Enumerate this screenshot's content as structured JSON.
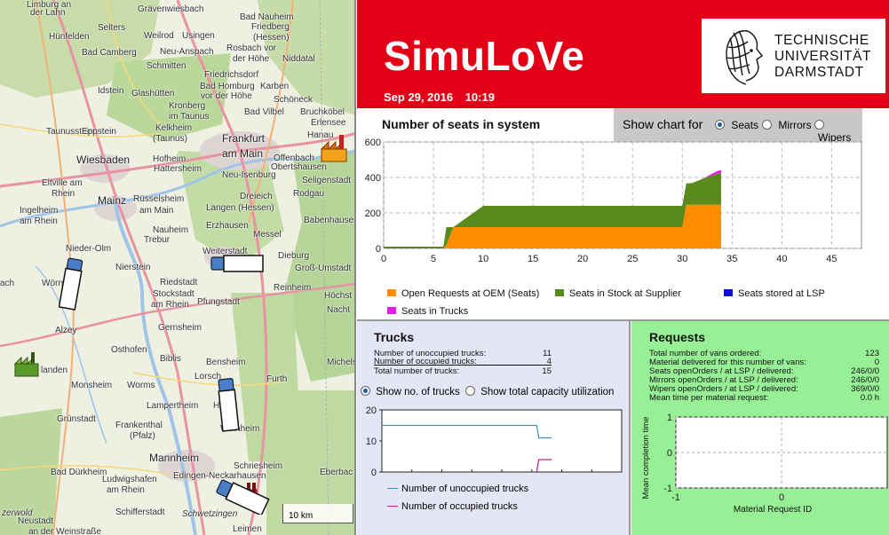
{
  "app": {
    "title": "SimuLoVe",
    "date": "Sep 29, 2016",
    "time": "10:19",
    "logo_lines": [
      "TECHNISCHE",
      "UNIVERSITÄT",
      "DARMSTADT"
    ]
  },
  "map": {
    "scale_label": "10 km",
    "towns": [
      {
        "name": "Limburg an",
        "cls": "",
        "id": "limburg"
      },
      {
        "name": "der Lahn",
        "cls": "",
        "id": "lahn"
      },
      {
        "name": "Grävenwiesbach",
        "cls": "",
        "id": "graevenwiesbach"
      },
      {
        "name": "Bad Nauheim",
        "cls": "",
        "id": "badnauheim"
      },
      {
        "name": "Friedberg",
        "cls": "",
        "id": "friedberg"
      },
      {
        "name": "(Hessen)",
        "cls": "",
        "id": "hessen1"
      },
      {
        "name": "Hünfelden",
        "cls": "",
        "id": "huenfelden"
      },
      {
        "name": "Selters",
        "cls": "",
        "id": "selters"
      },
      {
        "name": "Weilrod",
        "cls": "",
        "id": "weilrod"
      },
      {
        "name": "Usingen",
        "cls": "",
        "id": "usingen"
      },
      {
        "name": "Rosbach vor",
        "cls": "",
        "id": "rosbach"
      },
      {
        "name": "der Höhe",
        "cls": "",
        "id": "derhoehe"
      },
      {
        "name": "Niddatal",
        "cls": "",
        "id": "niddatal"
      },
      {
        "name": "Bad Camberg",
        "cls": "",
        "id": "badcamberg"
      },
      {
        "name": "Neu-Anspach",
        "cls": "",
        "id": "neuanspach"
      },
      {
        "name": "Schmitten",
        "cls": "",
        "id": "schmitten"
      },
      {
        "name": "Friedrichsdorf",
        "cls": "",
        "id": "friedrichsdorf"
      },
      {
        "name": "Bad Homburg",
        "cls": "",
        "id": "badhomburg"
      },
      {
        "name": "vor der Höhe",
        "cls": "",
        "id": "vorderhoehe"
      },
      {
        "name": "Karben",
        "cls": "",
        "id": "karben"
      },
      {
        "name": "Idstein",
        "cls": "",
        "id": "idstein"
      },
      {
        "name": "Glashütten",
        "cls": "",
        "id": "glashuetten"
      },
      {
        "name": "Schöneck",
        "cls": "",
        "id": "schoeneck"
      },
      {
        "name": "Kronberg",
        "cls": "",
        "id": "kronberg"
      },
      {
        "name": "im Taunus",
        "cls": "",
        "id": "imtaunus"
      },
      {
        "name": "Bad Vilbel",
        "cls": "",
        "id": "badvilbel"
      },
      {
        "name": "Bruchköbel",
        "cls": "",
        "id": "bruchkoebel"
      },
      {
        "name": "Erlensee",
        "cls": "",
        "id": "erlensee"
      },
      {
        "name": "Taunusstein",
        "cls": "",
        "id": "taunusstein"
      },
      {
        "name": "Eppstein",
        "cls": "",
        "id": "eppstein"
      },
      {
        "name": "Kelkheim",
        "cls": "",
        "id": "kelkheim"
      },
      {
        "name": "(Taunus)",
        "cls": "",
        "id": "taunus2"
      },
      {
        "name": "Frankfurt",
        "cls": "city",
        "id": "frankfurt"
      },
      {
        "name": "am Main",
        "cls": "city",
        "id": "ammain"
      },
      {
        "name": "Hanau",
        "cls": "",
        "id": "hanau"
      },
      {
        "name": "Wiesbaden",
        "cls": "city",
        "id": "wiesbaden"
      },
      {
        "name": "Hofheim",
        "cls": "",
        "id": "hofheim"
      },
      {
        "name": "Hattersheim",
        "cls": "",
        "id": "hattersheim"
      },
      {
        "name": "Offenbach",
        "cls": "",
        "id": "offenbach"
      },
      {
        "name": "Obertshausen",
        "cls": "",
        "id": "obertshausen"
      },
      {
        "name": "Seligenstadt",
        "cls": "",
        "id": "seligenstadt"
      },
      {
        "name": "Neu-Isenburg",
        "cls": "",
        "id": "neuisenburg"
      },
      {
        "name": "Eltville am",
        "cls": "",
        "id": "eltville"
      },
      {
        "name": "Rhein",
        "cls": "",
        "id": "rhein1"
      },
      {
        "name": "Mainz",
        "cls": "city",
        "id": "mainz"
      },
      {
        "name": "Rüsselsheim",
        "cls": "",
        "id": "ruesselsheim"
      },
      {
        "name": "am Main",
        "cls": "",
        "id": "ammain2"
      },
      {
        "name": "Dreieich",
        "cls": "",
        "id": "dreieich"
      },
      {
        "name": "Langen (Hessen)",
        "cls": "",
        "id": "langen"
      },
      {
        "name": "Rodgau",
        "cls": "",
        "id": "rodgau"
      },
      {
        "name": "Ingelheim",
        "cls": "",
        "id": "ingelheim"
      },
      {
        "name": "am Rhein",
        "cls": "",
        "id": "amrhein"
      },
      {
        "name": "Babenhausen",
        "cls": "",
        "id": "babenhausen"
      },
      {
        "name": "Nauheim",
        "cls": "",
        "id": "nauheim"
      },
      {
        "name": "Erzhausen",
        "cls": "",
        "id": "erzhausen"
      },
      {
        "name": "Trebur",
        "cls": "",
        "id": "trebur"
      },
      {
        "name": "Messel",
        "cls": "",
        "id": "messel"
      },
      {
        "name": "Nieder-Olm",
        "cls": "",
        "id": "niederolm"
      },
      {
        "name": "Weiterstadt",
        "cls": "",
        "id": "weiterstadt"
      },
      {
        "name": "Dieburg",
        "cls": "",
        "id": "dieburg"
      },
      {
        "name": "Nierstein",
        "cls": "",
        "id": "nierstein"
      },
      {
        "name": "Groß-Umstadt",
        "cls": "",
        "id": "grossumstadt"
      },
      {
        "name": "Wörrstadt",
        "cls": "",
        "id": "woerrstadt"
      },
      {
        "name": "Riedstadt",
        "cls": "",
        "id": "riedstadt"
      },
      {
        "name": "Reinheim",
        "cls": "",
        "id": "reinheim"
      },
      {
        "name": "Stockstadt",
        "cls": "",
        "id": "stockstadt"
      },
      {
        "name": "am Rhein",
        "cls": "",
        "id": "amrhein2"
      },
      {
        "name": "Pfungstadt",
        "cls": "",
        "id": "pfungstadt"
      },
      {
        "name": "Höchst",
        "cls": "",
        "id": "hoechst"
      },
      {
        "name": "Alzey",
        "cls": "",
        "id": "alzey"
      },
      {
        "name": "Gernsheim",
        "cls": "",
        "id": "gernsheim"
      },
      {
        "name": "Osthofen",
        "cls": "",
        "id": "osthofen"
      },
      {
        "name": "Biblis",
        "cls": "",
        "id": "biblis"
      },
      {
        "name": "Bensheim",
        "cls": "",
        "id": "bensheim"
      },
      {
        "name": "Michels",
        "cls": "",
        "id": "michels"
      },
      {
        "name": "Lorsch",
        "cls": "",
        "id": "lorsch"
      },
      {
        "name": "landen",
        "cls": "",
        "id": "landen"
      },
      {
        "name": "Monsheim",
        "cls": "",
        "id": "monsheim"
      },
      {
        "name": "Worms",
        "cls": "",
        "id": "worms"
      },
      {
        "name": "Furth",
        "cls": "",
        "id": "furth"
      },
      {
        "name": "Lampertheim",
        "cls": "",
        "id": "lampertheim"
      },
      {
        "name": "Hep",
        "cls": "",
        "id": "hep"
      },
      {
        "name": "Grünstadt",
        "cls": "",
        "id": "gruenstadt"
      },
      {
        "name": "Frankenthal",
        "cls": "",
        "id": "frankenthal"
      },
      {
        "name": "(Pfalz)",
        "cls": "",
        "id": "pfalz"
      },
      {
        "name": "Weinheim",
        "cls": "",
        "id": "weinheim"
      },
      {
        "name": "Mannheim",
        "cls": "city",
        "id": "mannheim"
      },
      {
        "name": "Bad Dürkheim",
        "cls": "",
        "id": "badduerkheim"
      },
      {
        "name": "Schriesheim",
        "cls": "",
        "id": "schriesheim"
      },
      {
        "name": "Edingen-Neckarhausen",
        "cls": "",
        "id": "edingen"
      },
      {
        "name": "Eberbac",
        "cls": "",
        "id": "eberbac"
      },
      {
        "name": "Ludwigshafen",
        "cls": "",
        "id": "ludwigshafen"
      },
      {
        "name": "am Rhein",
        "cls": "",
        "id": "amrhein3"
      },
      {
        "name": "zerwold",
        "cls": "",
        "id": "zerwold"
      },
      {
        "name": "Schifferstadt",
        "cls": "",
        "id": "schifferstadt"
      },
      {
        "name": "Schwetzingen",
        "cls": "",
        "id": "schwetzingen"
      },
      {
        "name": "Neustadt",
        "cls": "",
        "id": "neustadt"
      },
      {
        "name": "an der Weinstraße",
        "cls": "",
        "id": "weinstrasse"
      },
      {
        "name": "Leimen",
        "cls": "",
        "id": "leimen"
      },
      {
        "name": "ach",
        "cls": "",
        "id": "ach"
      },
      {
        "name": "Nacht",
        "cls": "",
        "id": "nacht"
      }
    ]
  },
  "seats_chart": {
    "title": "Number of seats in system",
    "chart_for_label": "Show chart for",
    "options": [
      {
        "label": "Seats",
        "selected": true
      },
      {
        "label": "Mirrors",
        "selected": false
      },
      {
        "label": "Wipers",
        "selected": false
      }
    ],
    "legend": [
      {
        "label": "Open Requests at OEM (Seats)",
        "color": "#ff8c00"
      },
      {
        "label": "Seats in Stock at Supplier",
        "color": "#5a8a1e"
      },
      {
        "label": "Seats stored at LSP",
        "color": "#1010d0"
      },
      {
        "label": "Seats in Trucks",
        "color": "#e020e0"
      }
    ]
  },
  "trucks": {
    "title": "Trucks",
    "stats": [
      {
        "label": "Number of unoccupied trucks:",
        "value": "11"
      },
      {
        "label": "Number of occupied trucks:",
        "value": "4"
      },
      {
        "label": "Total number of trucks:",
        "value": "15"
      }
    ],
    "options": [
      {
        "label": "Show no. of trucks",
        "selected": true
      },
      {
        "label": "Show total capacity utilization",
        "selected": false
      }
    ],
    "legend": [
      {
        "label": "Number of unoccupied trucks",
        "color": "#3d8fd0"
      },
      {
        "label": "Number of occupied trucks",
        "color": "#c0208a"
      }
    ]
  },
  "requests": {
    "title": "Requests",
    "stats": [
      {
        "label": "Total number of vans ordered:",
        "value": "123"
      },
      {
        "label": "Material delivered for this number of vans:",
        "value": "0"
      },
      {
        "label": "Seats openOrders / at LSP / delivered:",
        "value": "246/0/0"
      },
      {
        "label": "Mirrors openOrders / at LSP / delivered:",
        "value": "246/0/0"
      },
      {
        "label": "Wipers openOrders / at LSP / delivered:",
        "value": "369/0/0"
      },
      {
        "label": "Mean time per material request:",
        "value": "0.0 h"
      }
    ]
  },
  "chart_data": [
    {
      "type": "area",
      "title": "Number of seats in system",
      "xlabel": "",
      "ylabel": "",
      "xlim": [
        0,
        48
      ],
      "ylim": [
        0,
        600
      ],
      "x_ticks": [
        0,
        5,
        10,
        15,
        20,
        25,
        30,
        35,
        40,
        45
      ],
      "y_ticks": [
        0,
        200,
        400,
        600
      ],
      "grid": true,
      "stacked": true,
      "x": [
        0,
        6,
        6.3,
        7,
        10,
        15,
        20,
        25,
        30,
        30.4,
        31,
        32,
        33.5,
        33.9
      ],
      "series": [
        {
          "name": "Open Requests at OEM (Seats)",
          "values": [
            0,
            0,
            20,
            120,
            120,
            120,
            120,
            120,
            120,
            246,
            246,
            246,
            246,
            246
          ]
        },
        {
          "name": "Seats in Stock at Supplier",
          "values": [
            10,
            10,
            100,
            0,
            120,
            120,
            120,
            120,
            120,
            120,
            123,
            145,
            175,
            175
          ]
        },
        {
          "name": "Seats stored at LSP",
          "values": [
            0,
            0,
            0,
            0,
            0,
            0,
            0,
            0,
            0,
            0,
            0,
            0,
            0,
            0
          ]
        },
        {
          "name": "Seats in Trucks",
          "values": [
            0,
            0,
            0,
            0,
            0,
            0,
            0,
            0,
            0,
            0,
            0,
            0,
            15,
            20
          ]
        }
      ]
    },
    {
      "type": "line",
      "title": "",
      "xlabel": "",
      "ylabel": "",
      "ylim": [
        0,
        20
      ],
      "y_ticks": [
        0,
        10,
        20
      ],
      "grid": false,
      "series": [
        {
          "name": "Number of unoccupied trucks",
          "points": [
            [
              0,
              15
            ],
            [
              31,
              15
            ],
            [
              31.4,
              11
            ],
            [
              34,
              11
            ]
          ]
        },
        {
          "name": "Number of occupied trucks",
          "points": [
            [
              31,
              0
            ],
            [
              31.4,
              4
            ],
            [
              34,
              4
            ]
          ]
        }
      ]
    },
    {
      "type": "scatter",
      "title": "",
      "xlabel": "Material Request ID",
      "ylabel": "Mean completion time",
      "xlim": [
        -1,
        1
      ],
      "ylim": [
        -1,
        1
      ],
      "x_ticks": [
        -1,
        0
      ],
      "y_ticks": [
        -1,
        0,
        1
      ],
      "grid": true,
      "series": []
    }
  ]
}
